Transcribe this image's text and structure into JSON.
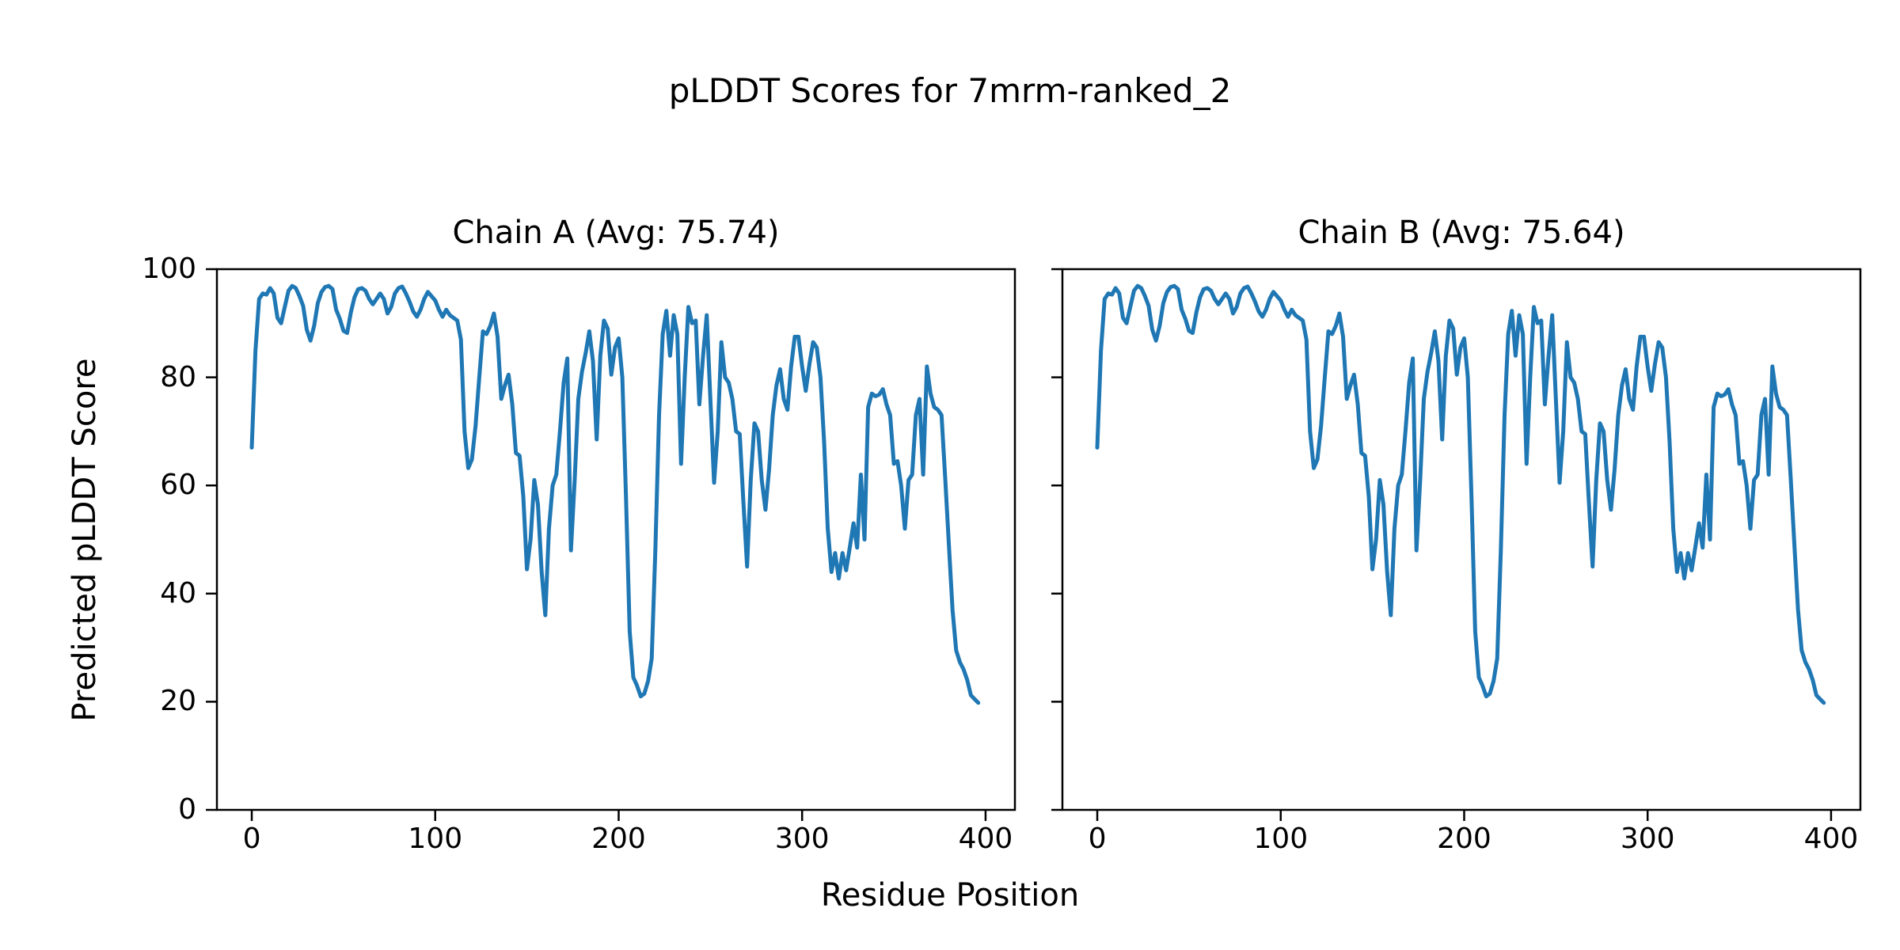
{
  "figure": {
    "title": "pLDDT Scores for 7mrm-ranked_2"
  },
  "axis_labels": {
    "x": "Residue Position",
    "y": "Predicted pLDDT Score"
  },
  "colors": {
    "line": "#1f77b4",
    "axes": "#000000",
    "background": "#ffffff"
  },
  "chart_data": [
    {
      "type": "line",
      "title": "Chain A (Avg: 75.74)",
      "series_name": "Chain A",
      "avg": 75.74,
      "xlabel": "Residue Position",
      "ylabel": "Predicted pLDDT Score",
      "xlim": [
        -19,
        416
      ],
      "ylim": [
        0,
        100
      ],
      "xticks": [
        0,
        100,
        200,
        300,
        400
      ],
      "yticks": [
        0,
        20,
        40,
        60,
        80,
        100
      ],
      "y_tick_labels_visible": true,
      "grid": false,
      "legend": "none",
      "line_color": "#1f77b4",
      "x_start": 0,
      "x_step": 2,
      "values": [
        67,
        85,
        94.5,
        95.5,
        95.3,
        96.5,
        95.5,
        91,
        90,
        93,
        96,
        96.9,
        96.5,
        95,
        93.2,
        88.8,
        86.8,
        89.5,
        93.7,
        95.8,
        96.7,
        96.9,
        96.3,
        92.5,
        90.8,
        88.6,
        88.2,
        92,
        94.8,
        96.3,
        96.5,
        96,
        94.5,
        93.5,
        94.5,
        95.5,
        94.5,
        91.8,
        93,
        95.5,
        96.5,
        96.8,
        95.5,
        94,
        92.2,
        91.2,
        92.5,
        94.5,
        95.8,
        95,
        94.2,
        92.5,
        91.2,
        92.5,
        91.5,
        91,
        90.5,
        87,
        70,
        63.2,
        64.8,
        71,
        80,
        88.5,
        88,
        89.5,
        91.8,
        87.5,
        76,
        78.5,
        80.5,
        75,
        66,
        65.5,
        58,
        44.5,
        50,
        61,
        56.5,
        44,
        36,
        52,
        60,
        62,
        70,
        79,
        83.5,
        48,
        61,
        76,
        81,
        84.5,
        88.5,
        83,
        68.5,
        84,
        90.5,
        89,
        80.5,
        85.5,
        87.2,
        80,
        58,
        33,
        24.5,
        23,
        21,
        21.5,
        23.8,
        28,
        48,
        73,
        88,
        92.3,
        84,
        91.5,
        88,
        64,
        80,
        93,
        90,
        90.5,
        75,
        84,
        91.5,
        76,
        60.5,
        70,
        86.5,
        80,
        79,
        76,
        70,
        69.5,
        57,
        45,
        61,
        71.5,
        70,
        61,
        55.5,
        63,
        73,
        78.5,
        81.5,
        76,
        74,
        82,
        87.5,
        87.5,
        82,
        77.5,
        82.5,
        86.5,
        85.5,
        80,
        68,
        52,
        44,
        47.5,
        42.8,
        47.5,
        44.3,
        48.5,
        53,
        48.5,
        62,
        50,
        74.5,
        77,
        76.5,
        76.8,
        77.8,
        75,
        73,
        64,
        64.5,
        60,
        52,
        61,
        62,
        73,
        76,
        62,
        82,
        77,
        74.5,
        74,
        73,
        61.5,
        49,
        37,
        29.5,
        27.3,
        26,
        24,
        21.2,
        20.5,
        19.8
      ]
    },
    {
      "type": "line",
      "title": "Chain B (Avg: 75.64)",
      "series_name": "Chain B",
      "avg": 75.64,
      "xlabel": "Residue Position",
      "ylabel": "Predicted pLDDT Score",
      "xlim": [
        -19,
        416
      ],
      "ylim": [
        0,
        100
      ],
      "xticks": [
        0,
        100,
        200,
        300,
        400
      ],
      "yticks": [
        0,
        20,
        40,
        60,
        80,
        100
      ],
      "y_tick_labels_visible": false,
      "grid": false,
      "legend": "none",
      "line_color": "#1f77b4",
      "x_start": 0,
      "x_step": 2,
      "values": [
        67,
        85,
        94.5,
        95.5,
        95.3,
        96.5,
        95.5,
        91,
        90,
        93,
        96,
        96.9,
        96.5,
        95,
        93.2,
        88.8,
        86.8,
        89.5,
        93.7,
        95.8,
        96.7,
        96.9,
        96.3,
        92.5,
        90.8,
        88.6,
        88.2,
        92,
        94.8,
        96.3,
        96.5,
        96,
        94.5,
        93.5,
        94.5,
        95.5,
        94.5,
        91.8,
        93,
        95.5,
        96.5,
        96.8,
        95.5,
        94,
        92.2,
        91.2,
        92.5,
        94.5,
        95.8,
        95,
        94.2,
        92.5,
        91.2,
        92.5,
        91.5,
        91,
        90.5,
        87,
        70,
        63.2,
        64.8,
        71,
        80,
        88.5,
        88,
        89.5,
        91.8,
        87.5,
        76,
        78.5,
        80.5,
        75,
        66,
        65.5,
        58,
        44.5,
        50,
        61,
        56.5,
        44,
        36,
        52,
        60,
        62,
        70,
        79,
        83.5,
        48,
        61,
        76,
        81,
        84.5,
        88.5,
        83,
        68.5,
        84,
        90.5,
        89,
        80.5,
        85.5,
        87.2,
        80,
        58,
        33,
        24.5,
        23,
        21,
        21.5,
        23.8,
        28,
        48,
        73,
        88,
        92.3,
        84,
        91.5,
        88,
        64,
        80,
        93,
        90,
        90.5,
        75,
        84,
        91.5,
        76,
        60.5,
        70,
        86.5,
        80,
        79,
        76,
        70,
        69.5,
        57,
        45,
        61,
        71.5,
        70,
        61,
        55.5,
        63,
        73,
        78.5,
        81.5,
        76,
        74,
        82,
        87.5,
        87.5,
        82,
        77.5,
        82.5,
        86.5,
        85.5,
        80,
        68,
        52,
        44,
        47.5,
        42.8,
        47.5,
        44.3,
        48.5,
        53,
        48.5,
        62,
        50,
        74.5,
        77,
        76.5,
        76.8,
        77.8,
        75,
        73,
        64,
        64.5,
        60,
        52,
        61,
        62,
        73,
        76,
        62,
        82,
        77,
        74.5,
        74,
        73,
        61.5,
        49,
        37,
        29.5,
        27.3,
        26,
        24,
        21.2,
        20.5,
        19.8
      ]
    }
  ]
}
